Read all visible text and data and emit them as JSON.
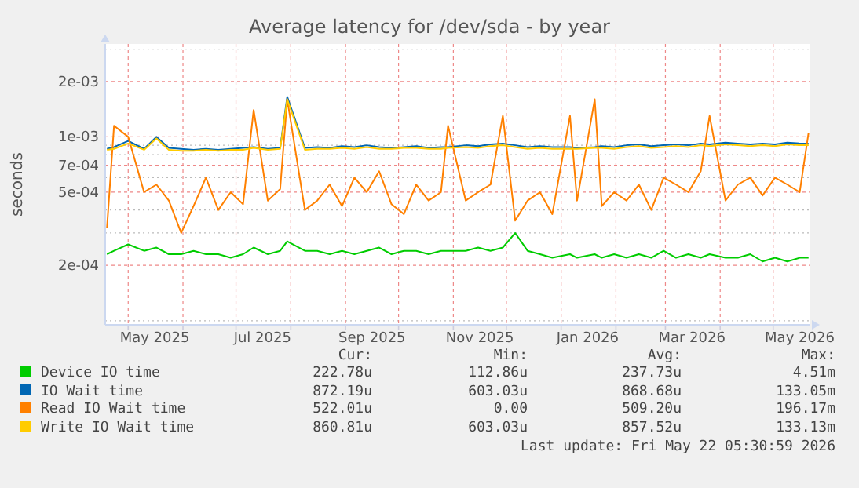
{
  "chart_data": {
    "type": "line",
    "title": "Average latency for /dev/sda - by year",
    "ylabel": "seconds",
    "log": "y",
    "grid": true,
    "legend": "bottom",
    "line_style": "solid",
    "xlim": [
      "2025-04-18",
      "2026-05-22"
    ],
    "xticks": [
      {
        "value": "2025-05-01",
        "label": null
      },
      {
        "value": "2025-05-16",
        "label": "May 2025"
      },
      {
        "value": "2025-06-01",
        "label": null
      },
      {
        "value": "2025-07-01",
        "label": null
      },
      {
        "value": "2025-07-16",
        "label": "Jul 2025"
      },
      {
        "value": "2025-08-01",
        "label": null
      },
      {
        "value": "2025-09-01",
        "label": null
      },
      {
        "value": "2025-09-16",
        "label": "Sep 2025"
      },
      {
        "value": "2025-10-01",
        "label": null
      },
      {
        "value": "2025-11-01",
        "label": null
      },
      {
        "value": "2025-11-16",
        "label": "Nov 2025"
      },
      {
        "value": "2025-12-01",
        "label": null
      },
      {
        "value": "2026-01-01",
        "label": null
      },
      {
        "value": "2026-01-16",
        "label": "Jan 2026"
      },
      {
        "value": "2026-02-01",
        "label": null
      },
      {
        "value": "2026-03-01",
        "label": null
      },
      {
        "value": "2026-03-16",
        "label": "Mar 2026"
      },
      {
        "value": "2026-04-01",
        "label": null
      },
      {
        "value": "2026-05-01",
        "label": null
      },
      {
        "value": "2026-05-16",
        "label": "May 2026"
      }
    ],
    "ylim": [
      9.5e-05,
      0.0032
    ],
    "yticks": [
      {
        "value": 0.002,
        "label": "2e-03"
      },
      {
        "value": 0.001,
        "label": "1e-03"
      },
      {
        "value": 0.0007,
        "label": "7e-04"
      },
      {
        "value": 0.0005,
        "label": "5e-04"
      },
      {
        "value": 0.0002,
        "label": "2e-04"
      },
      {
        "value": 0.003,
        "label": null
      },
      {
        "value": 0.0009,
        "label": null
      },
      {
        "value": 0.0008,
        "label": null
      },
      {
        "value": 0.0006,
        "label": null
      },
      {
        "value": 0.0004,
        "label": null
      },
      {
        "value": 0.0003,
        "label": null
      },
      {
        "value": 0.0001,
        "label": null
      }
    ],
    "x": [
      "2025-04-19",
      "2025-04-23",
      "2025-05-01",
      "2025-05-10",
      "2025-05-17",
      "2025-05-24",
      "2025-05-31",
      "2025-06-07",
      "2025-06-14",
      "2025-06-21",
      "2025-06-28",
      "2025-07-05",
      "2025-07-11",
      "2025-07-19",
      "2025-07-26",
      "2025-07-30",
      "2025-08-09",
      "2025-08-16",
      "2025-08-23",
      "2025-08-30",
      "2025-09-06",
      "2025-09-13",
      "2025-09-20",
      "2025-09-27",
      "2025-10-04",
      "2025-10-11",
      "2025-10-18",
      "2025-10-25",
      "2025-10-29",
      "2025-11-08",
      "2025-11-15",
      "2025-11-22",
      "2025-11-29",
      "2025-12-06",
      "2025-12-13",
      "2025-12-20",
      "2025-12-27",
      "2026-01-06",
      "2026-01-10",
      "2026-01-20",
      "2026-01-24",
      "2026-01-31",
      "2026-02-07",
      "2026-02-14",
      "2026-02-21",
      "2026-02-28",
      "2026-03-07",
      "2026-03-14",
      "2026-03-21",
      "2026-03-26",
      "2026-04-04",
      "2026-04-11",
      "2026-04-18",
      "2026-04-25",
      "2026-05-02",
      "2026-05-09",
      "2026-05-16",
      "2026-05-21"
    ],
    "series": [
      {
        "name": "Device IO time",
        "color": "#00cc00",
        "values": [
          0.00023,
          0.00024,
          0.00026,
          0.00024,
          0.00025,
          0.00023,
          0.00023,
          0.00024,
          0.00023,
          0.00023,
          0.00022,
          0.00023,
          0.00025,
          0.00023,
          0.00024,
          0.00027,
          0.00024,
          0.00024,
          0.00023,
          0.00024,
          0.00023,
          0.00024,
          0.00025,
          0.00023,
          0.00024,
          0.00024,
          0.00023,
          0.00024,
          0.00024,
          0.00024,
          0.00025,
          0.00024,
          0.00025,
          0.0003,
          0.00024,
          0.00023,
          0.00022,
          0.00023,
          0.00022,
          0.00023,
          0.00022,
          0.00023,
          0.00022,
          0.00023,
          0.00022,
          0.00024,
          0.00022,
          0.00023,
          0.00022,
          0.00023,
          0.00022,
          0.00022,
          0.00023,
          0.00021,
          0.00022,
          0.00021,
          0.00022,
          0.00022
        ]
      },
      {
        "name": "IO Wait time",
        "color": "#0066b3",
        "values": [
          0.00086,
          0.00088,
          0.00095,
          0.00086,
          0.001,
          0.00087,
          0.00086,
          0.00085,
          0.00086,
          0.00085,
          0.00086,
          0.00087,
          0.00088,
          0.00086,
          0.00087,
          0.00165,
          0.00087,
          0.00088,
          0.00087,
          0.00089,
          0.00088,
          0.0009,
          0.00088,
          0.00087,
          0.00088,
          0.00089,
          0.00087,
          0.00088,
          0.00088,
          0.0009,
          0.00089,
          0.00091,
          0.00092,
          0.0009,
          0.00088,
          0.00089,
          0.00088,
          0.00088,
          0.00087,
          0.00088,
          0.00089,
          0.00088,
          0.0009,
          0.00091,
          0.00089,
          0.0009,
          0.00091,
          0.0009,
          0.00092,
          0.00091,
          0.00093,
          0.00092,
          0.00091,
          0.00092,
          0.00091,
          0.00093,
          0.00092,
          0.00092
        ]
      },
      {
        "name": "Read IO Wait time",
        "color": "#ff8000",
        "values": [
          0.00032,
          0.00115,
          0.001,
          0.0005,
          0.00055,
          0.00045,
          0.0003,
          0.00042,
          0.0006,
          0.0004,
          0.0005,
          0.00043,
          0.0014,
          0.00045,
          0.00052,
          0.0016,
          0.0004,
          0.00045,
          0.00055,
          0.00042,
          0.0006,
          0.0005,
          0.00065,
          0.00043,
          0.00038,
          0.00055,
          0.00045,
          0.0005,
          0.00115,
          0.00045,
          0.0005,
          0.00055,
          0.0013,
          0.00035,
          0.00045,
          0.0005,
          0.00038,
          0.0013,
          0.00045,
          0.0016,
          0.00042,
          0.0005,
          0.00045,
          0.00055,
          0.0004,
          0.0006,
          0.00055,
          0.0005,
          0.00065,
          0.0013,
          0.00045,
          0.00055,
          0.0006,
          0.00048,
          0.0006,
          0.00055,
          0.0005,
          0.00105
        ]
      },
      {
        "name": "Write IO Wait time",
        "color": "#ffcc00",
        "values": [
          0.00085,
          0.00086,
          0.00092,
          0.00085,
          0.00098,
          0.00085,
          0.00084,
          0.00084,
          0.00085,
          0.00084,
          0.00085,
          0.00085,
          0.00087,
          0.00085,
          0.00086,
          0.0016,
          0.00085,
          0.00086,
          0.00086,
          0.00087,
          0.00086,
          0.00088,
          0.00086,
          0.00086,
          0.00087,
          0.00087,
          0.00086,
          0.00086,
          0.00087,
          0.00088,
          0.00087,
          0.00089,
          0.0009,
          0.00088,
          0.00086,
          0.00087,
          0.00086,
          0.00086,
          0.00086,
          0.00087,
          0.00087,
          0.00086,
          0.00088,
          0.00089,
          0.00087,
          0.00088,
          0.00089,
          0.00088,
          0.0009,
          0.00089,
          0.00091,
          0.0009,
          0.00089,
          0.0009,
          0.00089,
          0.00091,
          0.0009,
          0.0009
        ]
      }
    ],
    "annotations": [
      "Cur:",
      "Min:",
      "Avg:",
      "Max:",
      "222.78u",
      "112.86u",
      "237.73u",
      "4.51m",
      "872.19u",
      "603.03u",
      "868.68u",
      "133.05m",
      "522.01u",
      "0.00",
      "509.20u",
      "196.17m",
      "860.81u",
      "603.03u",
      "857.52u",
      "133.13m",
      "Last update: Fri May 22 05:30:59 2026"
    ]
  }
}
